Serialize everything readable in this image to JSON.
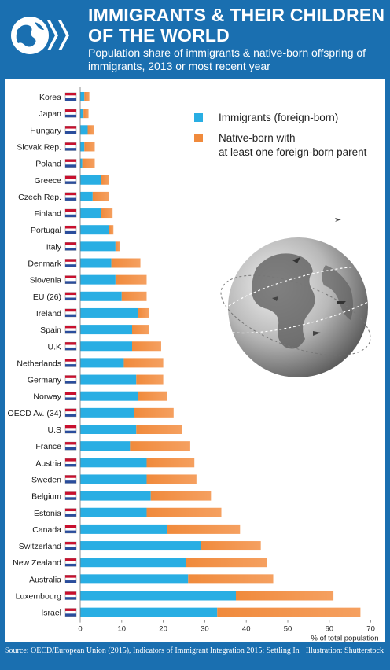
{
  "header": {
    "title": "IMMIGRANTS & THEIR CHILDREN OF THE WORLD",
    "subtitle": "Population share of immigrants & native-born offspring of immigrants, 2013 or most recent year"
  },
  "footer": {
    "source": "Source: OECD/European Union (2015), Indicators of Immigrant Integration 2015: Settling In",
    "illustration": "Illustration: Shutterstock"
  },
  "colors": {
    "background": "#1a6fb0",
    "immigrants": "#29aee3",
    "native_born": "#f08a3c"
  },
  "chart_data": {
    "type": "bar",
    "orientation": "horizontal",
    "stacked": true,
    "title": "IMMIGRANTS & THEIR CHILDREN OF THE WORLD",
    "subtitle": "Population share of immigrants & native-born offspring of immigrants, 2013 or most recent year",
    "xlabel": "% of total population",
    "xlim": [
      0,
      70
    ],
    "xticks": [
      0,
      10,
      20,
      30,
      40,
      50,
      60,
      70
    ],
    "grid": false,
    "legend_position": "top-right",
    "categories": [
      "Korea",
      "Japan",
      "Hungary",
      "Slovak Rep.",
      "Poland",
      "Greece",
      "Czech Rep.",
      "Finland",
      "Portugal",
      "Italy",
      "Denmark",
      "Slovenia",
      "EU (26)",
      "Ireland",
      "Spain",
      "U.K",
      "Netherlands",
      "Germany",
      "Norway",
      "OECD Av. (34)",
      "U.S",
      "France",
      "Austria",
      "Sweden",
      "Belgium",
      "Estonia",
      "Canada",
      "Switzerland",
      "New Zealand",
      "Australia",
      "Luxembourg",
      "Israel"
    ],
    "series": [
      {
        "name": "Immigrants (foreign-born)",
        "values": [
          1.0,
          0.8,
          1.8,
          1.0,
          0.5,
          5.0,
          3.0,
          5.0,
          7.0,
          8.5,
          7.5,
          8.5,
          10.0,
          14.0,
          12.5,
          12.5,
          10.5,
          13.5,
          14.0,
          13.0,
          13.5,
          12.0,
          16.0,
          16.0,
          17.0,
          16.0,
          21.0,
          29.0,
          25.5,
          26.0,
          37.5,
          33.0
        ]
      },
      {
        "name": "Native-born with at least one foreign-born parent",
        "values": [
          1.2,
          1.2,
          1.5,
          2.5,
          3.0,
          2.0,
          4.0,
          2.8,
          1.0,
          1.0,
          7.0,
          7.5,
          6.0,
          2.5,
          4.0,
          7.0,
          9.5,
          6.5,
          7.0,
          9.5,
          11.0,
          14.5,
          11.5,
          12.0,
          14.5,
          18.0,
          17.5,
          14.5,
          19.5,
          20.5,
          23.5,
          34.5
        ]
      }
    ]
  }
}
